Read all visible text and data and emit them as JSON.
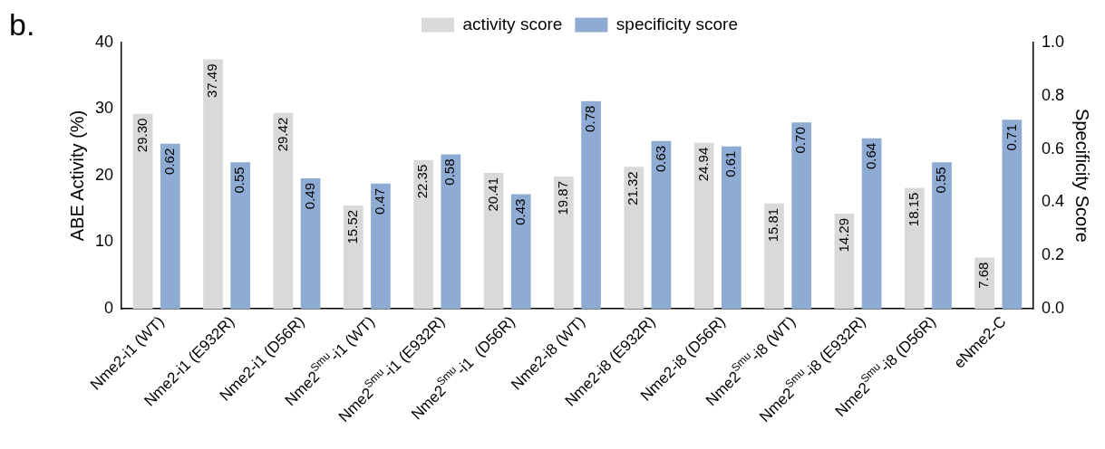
{
  "chart_data": {
    "type": "bar",
    "annotations": [
      "b."
    ],
    "ylabel": "ABE Activity (%)",
    "y2label": "Specificity Score",
    "legend": "top",
    "categories": [
      "Nme2-i1 (WT)",
      "Nme2-i1 (E932R)",
      "Nme2-i1 (D56R)",
      "Nme2$^{Smu}$-i1 (WT)",
      "Nme2$^{Smu}$-i1 (E932R)",
      "Nme2$^{Smu}$-i1  (D56R)",
      "Nme2-i8 (WT)",
      "Nme2-i8 (E932R)",
      "Nme2-i8 (D56R)",
      "Nme2$^{Smu}$-i8 (WT)",
      "Nme2$^{Smu}$-i8 (E932R)",
      "Nme2$^{Smu}$-i8 (D56R)",
      "eNme2-C"
    ],
    "series": [
      {
        "name": "activity score",
        "color": "#d9d9d9",
        "axis": "y",
        "values": [
          29.3,
          37.49,
          29.42,
          15.52,
          22.35,
          20.41,
          19.87,
          21.32,
          24.94,
          15.81,
          14.29,
          18.15,
          7.68
        ],
        "value_labels": [
          "29.30",
          "37.49",
          "29.42",
          "15.52",
          "22.35",
          "20.41",
          "19.87",
          "21.32",
          "24.94",
          "15.81",
          "14.29",
          "18.15",
          "7.68"
        ]
      },
      {
        "name": "specificity score",
        "color": "#8eabd4",
        "axis": "y2",
        "values": [
          0.62,
          0.55,
          0.49,
          0.47,
          0.58,
          0.43,
          0.78,
          0.63,
          0.61,
          0.7,
          0.64,
          0.55,
          0.71
        ],
        "value_labels": [
          "0.62",
          "0.55",
          "0.49",
          "0.47",
          "0.58",
          "0.43",
          "0.78",
          "0.63",
          "0.61",
          "0.70",
          "0.64",
          "0.55",
          "0.71"
        ]
      }
    ],
    "ylim": [
      0,
      40
    ],
    "yticks": [
      0,
      10,
      20,
      30,
      40
    ],
    "y2lim": [
      0,
      1
    ],
    "y2ticks": [
      {
        "value": 0,
        "label": "0.0"
      },
      0.2,
      0.4,
      0.6,
      0.8,
      {
        "value": 1,
        "label": "1.0"
      }
    ]
  }
}
